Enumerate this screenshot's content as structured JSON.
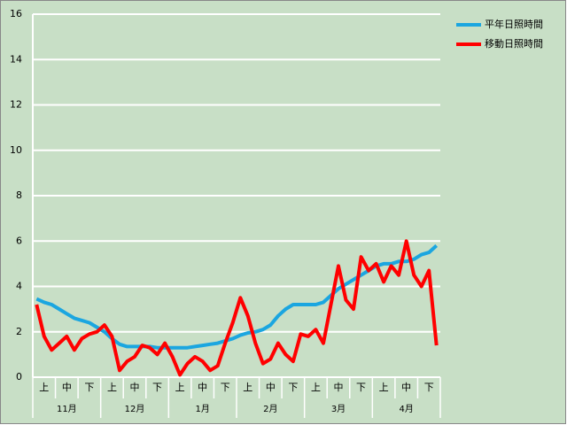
{
  "chart_data": {
    "type": "line",
    "categories": [
      null,
      "上",
      null,
      null,
      "中",
      null,
      null,
      "下",
      null,
      null,
      "上",
      null,
      null,
      "中",
      null,
      null,
      "下",
      null,
      null,
      "上",
      null,
      null,
      "中",
      null,
      null,
      "下",
      null,
      null,
      "上",
      null,
      null,
      "中",
      null,
      null,
      "下",
      null,
      null,
      "上",
      null,
      null,
      "中",
      null,
      null,
      "下",
      null,
      null,
      "上",
      null,
      null,
      "中",
      null,
      null,
      "下",
      null
    ],
    "groups": [
      "11月",
      "12月",
      "1月",
      "2月",
      "3月",
      "4月"
    ],
    "series": [
      {
        "name": "平年日照時間",
        "color": "#1ba6e0",
        "values": [
          3.45,
          3.3,
          3.2,
          3.0,
          2.8,
          2.6,
          2.5,
          2.4,
          2.2,
          2.0,
          1.7,
          1.45,
          1.35,
          1.35,
          1.35,
          1.35,
          1.3,
          1.3,
          1.3,
          1.3,
          1.3,
          1.35,
          1.4,
          1.45,
          1.5,
          1.6,
          1.7,
          1.85,
          1.95,
          2.0,
          2.1,
          2.3,
          2.7,
          3.0,
          3.2,
          3.2,
          3.2,
          3.2,
          3.3,
          3.6,
          3.9,
          4.1,
          4.3,
          4.5,
          4.7,
          4.9,
          5.0,
          5.0,
          5.1,
          5.1,
          5.2,
          5.4,
          5.5,
          5.8
        ]
      },
      {
        "name": "移動日照時間",
        "color": "#ff0000",
        "values": [
          3.2,
          1.8,
          1.2,
          1.5,
          1.8,
          1.2,
          1.7,
          1.9,
          2.0,
          2.3,
          1.8,
          0.3,
          0.7,
          0.9,
          1.4,
          1.3,
          1.0,
          1.5,
          0.9,
          0.1,
          0.6,
          0.9,
          0.7,
          0.3,
          0.5,
          1.5,
          2.4,
          3.5,
          2.7,
          1.5,
          0.6,
          0.8,
          1.5,
          1.0,
          0.7,
          1.9,
          1.8,
          2.1,
          1.5,
          3.2,
          4.9,
          3.4,
          3.0,
          5.3,
          4.7,
          5.0,
          4.2,
          4.9,
          4.5,
          6.0,
          4.5,
          4.0,
          4.7,
          1.4
        ]
      }
    ],
    "ylim": [
      0,
      16
    ],
    "yticks": [
      0,
      2,
      4,
      6,
      8,
      10,
      12,
      14,
      16
    ],
    "grid": true,
    "legend": "right"
  }
}
